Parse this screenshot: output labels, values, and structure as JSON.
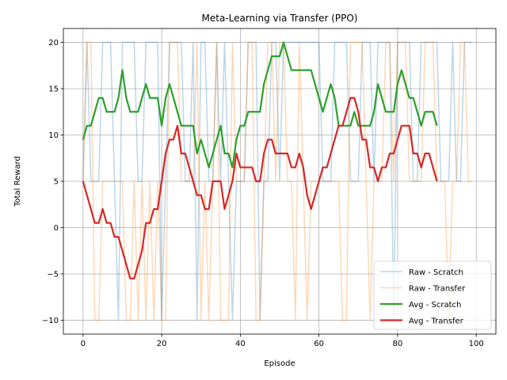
{
  "chart_data": {
    "type": "line",
    "title": "Meta-Learning via Transfer (PPO)",
    "xlabel": "Episode",
    "ylabel": "Total Reward",
    "xlim": [
      -5,
      105
    ],
    "ylim": [
      -11.5,
      21.5
    ],
    "xticks": [
      0,
      20,
      40,
      60,
      80,
      100
    ],
    "yticks": [
      -10,
      -5,
      0,
      5,
      10,
      15,
      20
    ],
    "grid": true,
    "legend_position": "lower-right",
    "series": [
      {
        "name": "Raw - Scratch",
        "color": "#1f77b4",
        "opacity": 0.3,
        "width": 1.5,
        "x": [
          0,
          1,
          2,
          3,
          4,
          5,
          6,
          7,
          8,
          9,
          10,
          11,
          12,
          13,
          14,
          15,
          16,
          17,
          18,
          19,
          20,
          21,
          22,
          23,
          24,
          25,
          26,
          27,
          28,
          29,
          30,
          31,
          32,
          33,
          34,
          35,
          36,
          37,
          38,
          39,
          40,
          41,
          42,
          43,
          44,
          45,
          46,
          47,
          48,
          49,
          50,
          51,
          52,
          53,
          54,
          55,
          56,
          57,
          58,
          59,
          60,
          61,
          62,
          63,
          64,
          65,
          66,
          67,
          68,
          69,
          70,
          71,
          72,
          73,
          74,
          75,
          76,
          77,
          78,
          79,
          80,
          81,
          82,
          83,
          84,
          85,
          86,
          87,
          88,
          89,
          90,
          91,
          92,
          93,
          94,
          95,
          96,
          97,
          98,
          99
        ],
        "values": [
          5,
          20,
          5,
          5,
          5,
          20,
          20,
          20,
          5,
          -10,
          20,
          20,
          20,
          20,
          5,
          5,
          20,
          20,
          20,
          20,
          -10,
          5,
          20,
          20,
          20,
          20,
          5,
          5,
          20,
          -10,
          20,
          20,
          5,
          5,
          20,
          5,
          20,
          5,
          -10,
          5,
          5,
          5,
          20,
          20,
          20,
          -10,
          5,
          5,
          20,
          20,
          5,
          20,
          20,
          20,
          20,
          20,
          20,
          20,
          20,
          20,
          20,
          5,
          5,
          5,
          20,
          20,
          20,
          20,
          5,
          5,
          5,
          20,
          20,
          20,
          5,
          20,
          20,
          20,
          20,
          -10,
          20,
          20,
          20,
          20,
          5,
          5,
          20,
          20,
          20,
          20,
          20,
          5,
          5,
          5,
          20,
          5,
          5,
          20,
          20,
          20
        ]
      },
      {
        "name": "Raw - Transfer",
        "color": "#ff7f0e",
        "opacity": 0.3,
        "width": 1.5,
        "x": [
          0,
          1,
          2,
          3,
          4,
          5,
          6,
          7,
          8,
          9,
          10,
          11,
          12,
          13,
          14,
          15,
          16,
          17,
          18,
          19,
          20,
          21,
          22,
          23,
          24,
          25,
          26,
          27,
          28,
          29,
          30,
          31,
          32,
          33,
          34,
          35,
          36,
          37,
          38,
          39,
          40,
          41,
          42,
          43,
          44,
          45,
          46,
          47,
          48,
          49,
          50,
          51,
          52,
          53,
          54,
          55,
          56,
          57,
          58,
          59,
          60,
          61,
          62,
          63,
          64,
          65,
          66,
          67,
          68,
          69,
          70,
          71,
          72,
          73,
          74,
          75,
          76,
          77,
          78,
          79,
          80,
          81,
          82,
          83,
          84,
          85,
          86,
          87,
          88,
          89,
          90,
          91,
          92,
          93,
          94,
          95,
          96,
          97,
          98,
          99
        ],
        "values": [
          5,
          20,
          20,
          -10,
          -10,
          5,
          5,
          5,
          5,
          5,
          5,
          -10,
          -10,
          5,
          -10,
          5,
          -10,
          5,
          -10,
          5,
          -10,
          -10,
          20,
          20,
          20,
          5,
          5,
          5,
          5,
          20,
          -10,
          5,
          -10,
          5,
          20,
          -10,
          -10,
          -10,
          20,
          5,
          5,
          5,
          20,
          20,
          -10,
          -10,
          5,
          20,
          20,
          5,
          20,
          20,
          5,
          5,
          -10,
          20,
          5,
          -10,
          5,
          5,
          5,
          5,
          5,
          5,
          5,
          5,
          -10,
          -10,
          20,
          20,
          20,
          20,
          5,
          -10,
          5,
          5,
          5,
          20,
          20,
          5,
          20,
          20,
          20,
          5,
          5,
          5,
          5,
          20,
          20,
          20,
          5,
          5,
          5,
          -10,
          5,
          5,
          20,
          20,
          5,
          5
        ]
      },
      {
        "name": "Avg - Scratch",
        "color": "#2ca02c",
        "opacity": 1,
        "width": 2.2,
        "x": [
          0,
          1,
          2,
          3,
          4,
          5,
          6,
          7,
          8,
          9,
          10,
          11,
          12,
          13,
          14,
          15,
          16,
          17,
          18,
          19,
          20,
          21,
          22,
          23,
          24,
          25,
          26,
          27,
          28,
          29,
          30,
          31,
          32,
          33,
          34,
          35,
          36,
          37,
          38,
          39,
          40,
          41,
          42,
          43,
          44,
          45,
          46,
          47,
          48,
          49,
          50,
          51,
          52,
          53,
          54,
          55,
          56,
          57,
          58,
          59,
          60,
          61,
          62,
          63,
          64,
          65,
          66,
          67,
          68,
          69,
          70,
          71,
          72,
          73,
          74,
          75,
          76,
          77,
          78,
          79,
          80,
          81,
          82,
          83,
          84,
          85,
          86,
          87,
          88,
          89,
          90
        ],
        "values": [
          9.5,
          11,
          11,
          12.5,
          14,
          14,
          12.5,
          12.5,
          12.5,
          14,
          17,
          14,
          12.5,
          12.5,
          12.5,
          14,
          15.5,
          14,
          14,
          14,
          11,
          14,
          15.5,
          14,
          12.5,
          11,
          11,
          11,
          11,
          8,
          9.5,
          8,
          6.5,
          8,
          9.5,
          11,
          8,
          8,
          6.5,
          9.5,
          11,
          11,
          12.5,
          12.5,
          12.5,
          12.5,
          15.5,
          17,
          18.5,
          18.5,
          18.5,
          20,
          18.5,
          17,
          17,
          17,
          17,
          17,
          17,
          15.5,
          14,
          12.5,
          14,
          15.5,
          14,
          11,
          11,
          11,
          11,
          12.5,
          11,
          11,
          11,
          11,
          12.5,
          15.5,
          14,
          12.5,
          12.5,
          12.5,
          15.5,
          17,
          15.5,
          14,
          14,
          12.5,
          11,
          12.5,
          12.5,
          12.5,
          11
        ]
      },
      {
        "name": "Avg - Transfer",
        "color": "#d62728",
        "opacity": 1,
        "width": 2.2,
        "x": [
          0,
          1,
          2,
          3,
          4,
          5,
          6,
          7,
          8,
          9,
          10,
          11,
          12,
          13,
          14,
          15,
          16,
          17,
          18,
          19,
          20,
          21,
          22,
          23,
          24,
          25,
          26,
          27,
          28,
          29,
          30,
          31,
          32,
          33,
          34,
          35,
          36,
          37,
          38,
          39,
          40,
          41,
          42,
          43,
          44,
          45,
          46,
          47,
          48,
          49,
          50,
          51,
          52,
          53,
          54,
          55,
          56,
          57,
          58,
          59,
          60,
          61,
          62,
          63,
          64,
          65,
          66,
          67,
          68,
          69,
          70,
          71,
          72,
          73,
          74,
          75,
          76,
          77,
          78,
          79,
          80,
          81,
          82,
          83,
          84,
          85,
          86,
          87,
          88,
          89,
          90
        ],
        "values": [
          5,
          3.5,
          2,
          0.5,
          0.5,
          2,
          0.5,
          0.5,
          -1,
          -1,
          -2.5,
          -4,
          -5.5,
          -5.5,
          -4,
          -2.5,
          0.5,
          0.5,
          2,
          2,
          5,
          8,
          9.5,
          9.5,
          11,
          8,
          8,
          6.5,
          5,
          3.5,
          3.5,
          2,
          2,
          5,
          5,
          5,
          2,
          3.5,
          5,
          8,
          6.5,
          6.5,
          6.5,
          6.5,
          5,
          5,
          8,
          9.5,
          9.5,
          8,
          8,
          8,
          8,
          6.5,
          6.5,
          8,
          6.5,
          3.5,
          2,
          3.5,
          5,
          6.5,
          6.5,
          8,
          9.5,
          11,
          11,
          12.5,
          14,
          14,
          12.5,
          9.5,
          9.5,
          6.5,
          6.5,
          5,
          6.5,
          6.5,
          8,
          8,
          9.5,
          11,
          11,
          11,
          8,
          8,
          6.5,
          8,
          8,
          6.5,
          5
        ]
      }
    ]
  }
}
